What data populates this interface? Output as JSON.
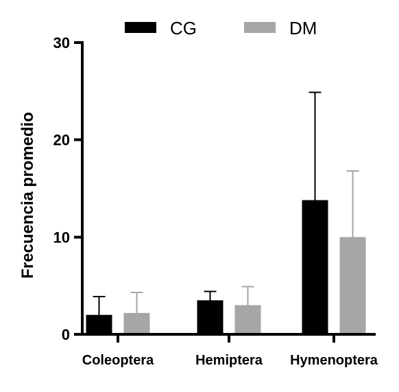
{
  "chart_data": {
    "type": "bar",
    "title": "",
    "xlabel": "",
    "ylabel": "Frecuencia promedio",
    "ylim": [
      0,
      30
    ],
    "yticks": [
      "0",
      "10",
      "20",
      "30"
    ],
    "categories": [
      "Coleoptera",
      "Hemiptera",
      "Hymenoptera"
    ],
    "legend_position": "top",
    "grid": false,
    "error_bars": "upper",
    "series": [
      {
        "name": "CG",
        "color": "#000000",
        "values": [
          2.0,
          3.5,
          13.8
        ],
        "error": [
          1.9,
          0.9,
          11.1
        ]
      },
      {
        "name": "DM",
        "color": "#a6a6a8",
        "values": [
          2.2,
          3.0,
          10.0
        ],
        "error": [
          2.1,
          1.9,
          6.8
        ]
      }
    ]
  }
}
